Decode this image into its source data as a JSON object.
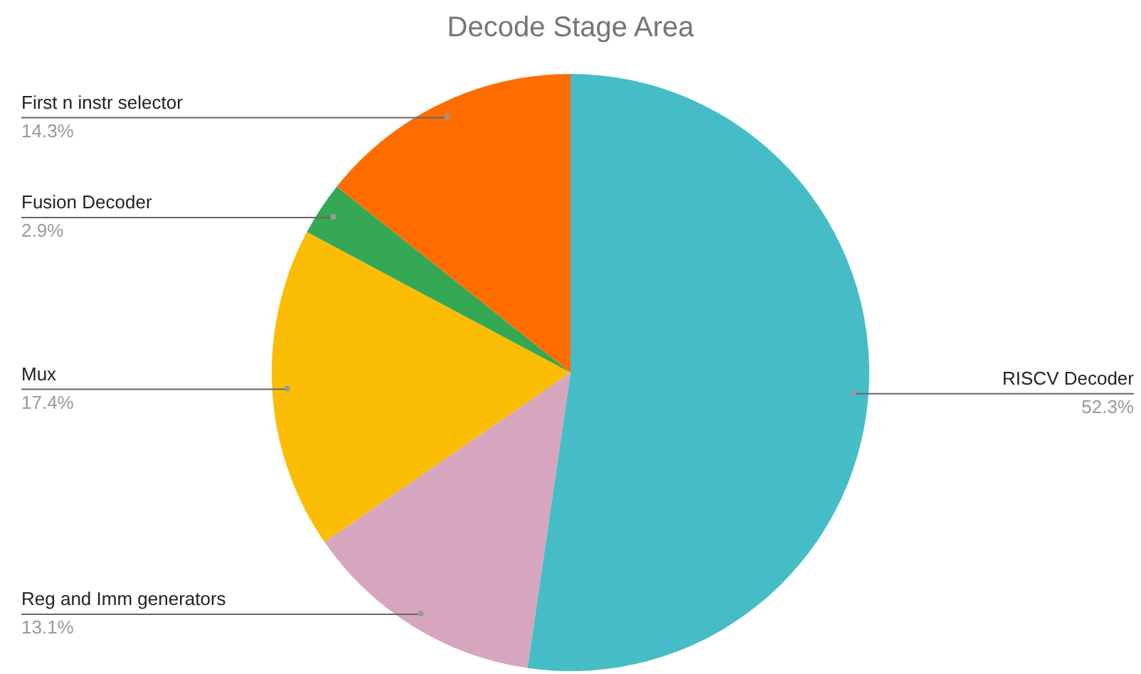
{
  "chart_data": {
    "type": "pie",
    "title": "Decode Stage Area",
    "categories": [
      "RISCV Decoder",
      "Reg and Imm generators",
      "Mux",
      "Fusion Decoder",
      "First n instr selector"
    ],
    "values": [
      52.3,
      13.1,
      17.4,
      2.9,
      14.3
    ],
    "colors": [
      "#46bdc6",
      "#d5a6bd",
      "#fbbc04",
      "#34a853",
      "#ff6d01"
    ],
    "value_labels": [
      "52.3%",
      "13.1%",
      "17.4%",
      "2.9%",
      "14.3%"
    ]
  }
}
